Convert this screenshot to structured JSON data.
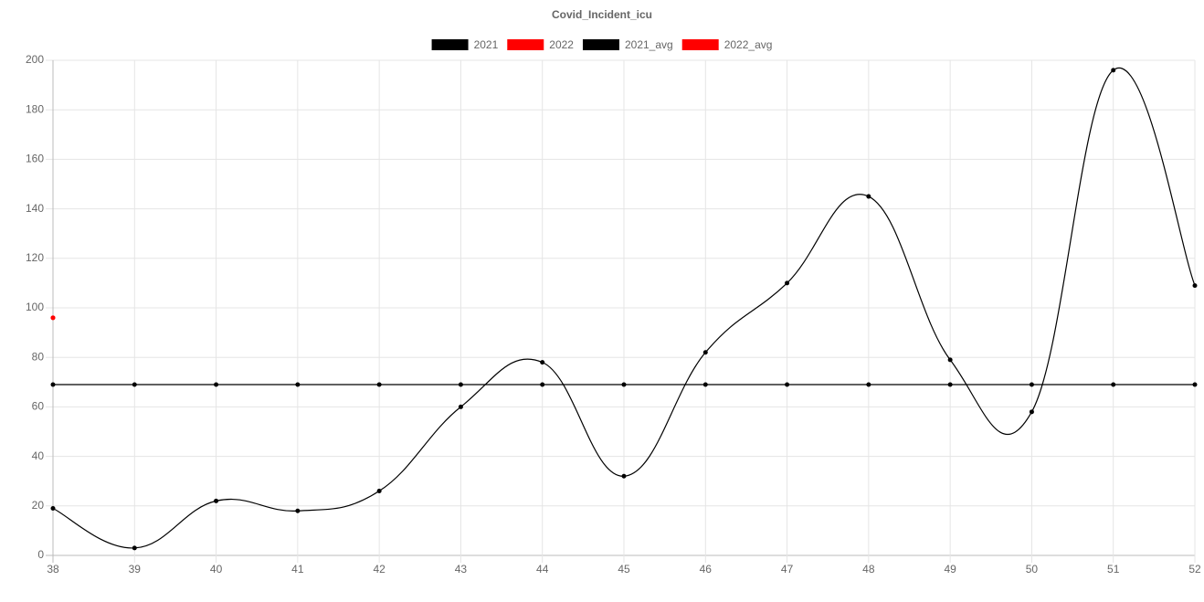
{
  "chart_data": {
    "type": "line",
    "title": "Covid_Incident_icu",
    "categories": [
      "38",
      "39",
      "40",
      "41",
      "42",
      "43",
      "44",
      "45",
      "46",
      "47",
      "48",
      "49",
      "50",
      "51",
      "52"
    ],
    "series": [
      {
        "name": "2021",
        "color": "#000000",
        "values": [
          19,
          3,
          22,
          18,
          26,
          60,
          78,
          32,
          82,
          110,
          145,
          79,
          58,
          196,
          109
        ]
      },
      {
        "name": "2022",
        "color": "#ff0000",
        "values": [
          96,
          null,
          null,
          null,
          null,
          null,
          null,
          null,
          null,
          null,
          null,
          null,
          null,
          null,
          null
        ]
      },
      {
        "name": "2021_avg",
        "color": "#000000",
        "values": [
          69,
          69,
          69,
          69,
          69,
          69,
          69,
          69,
          69,
          69,
          69,
          69,
          69,
          69,
          69
        ]
      },
      {
        "name": "2022_avg",
        "color": "#ff0000",
        "values": [
          96,
          null,
          null,
          null,
          null,
          null,
          null,
          null,
          null,
          null,
          null,
          null,
          null,
          null,
          null
        ]
      }
    ],
    "ylim": [
      0,
      200
    ],
    "yticks": [
      0,
      20,
      40,
      60,
      80,
      100,
      120,
      140,
      160,
      180,
      200
    ],
    "grid": true,
    "legend": "top"
  }
}
